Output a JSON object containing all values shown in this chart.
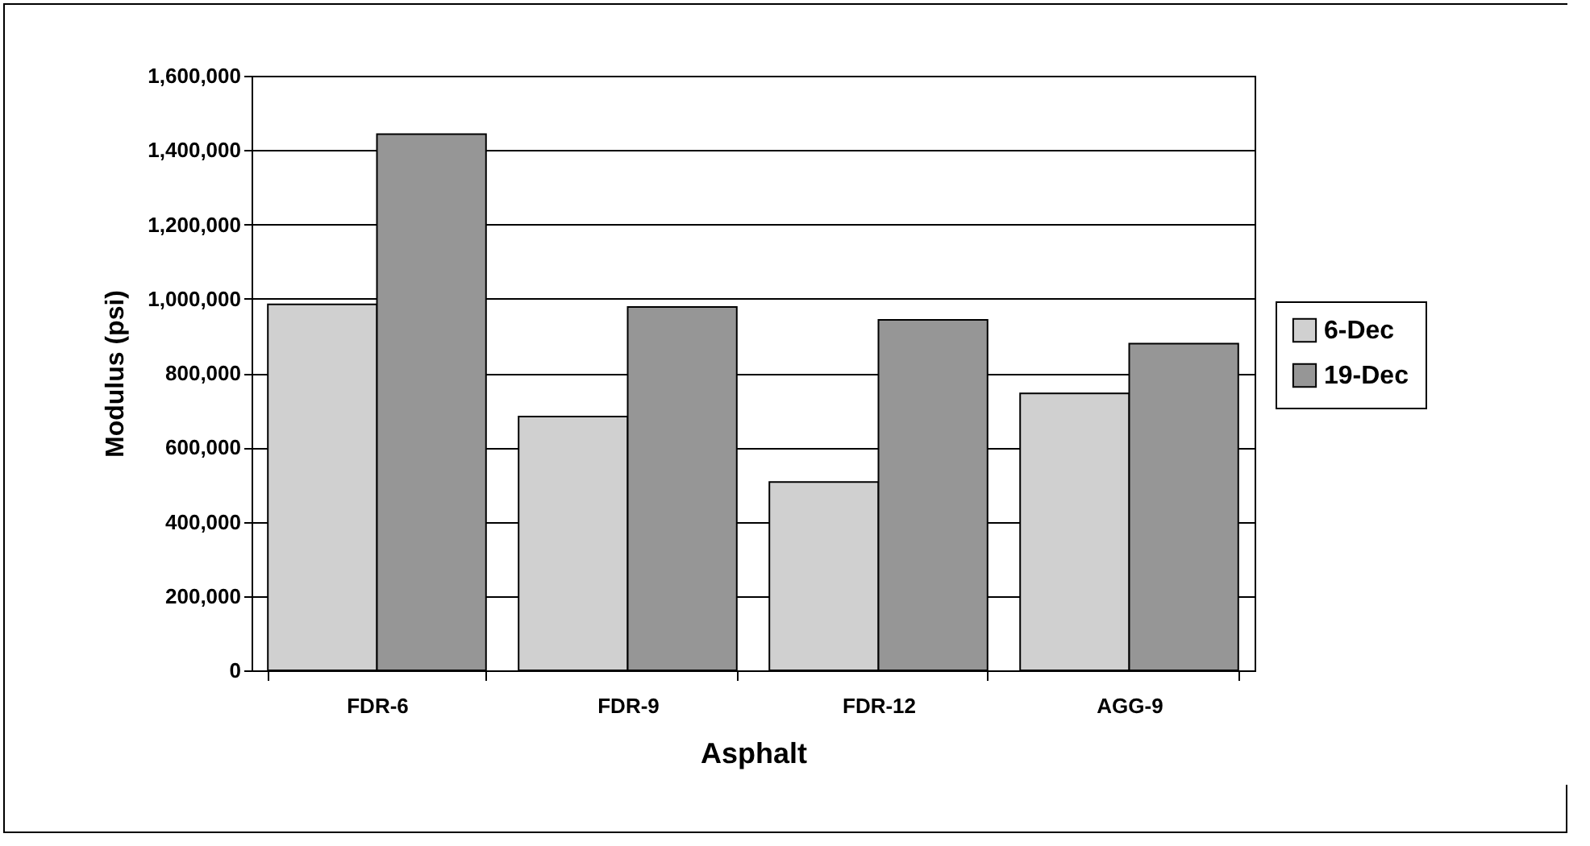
{
  "chart_data": {
    "type": "bar",
    "xlabel": "Asphalt",
    "ylabel": "Modulus (psi)",
    "categories": [
      "FDR-6",
      "FDR-9",
      "FDR-12",
      "AGG-9"
    ],
    "series": [
      {
        "name": "6-Dec",
        "color": "#d0d0d0",
        "values": [
          985000,
          683000,
          507000,
          745000
        ]
      },
      {
        "name": "19-Dec",
        "color": "#969696",
        "values": [
          1443000,
          978000,
          943000,
          879000
        ]
      }
    ],
    "ylim": [
      0,
      1600000
    ],
    "yticks": [
      0,
      {
        "value": 200000,
        "label": "200,000"
      },
      {
        "value": 400000,
        "label": "400,000"
      },
      {
        "value": 600000,
        "label": "600,000"
      },
      {
        "value": 800000,
        "label": "800,000"
      },
      {
        "value": 1000000,
        "label": "1,000,000"
      },
      {
        "value": 1200000,
        "label": "1,200,000"
      },
      {
        "value": 1400000,
        "label": "1,400,000"
      },
      {
        "value": 1600000,
        "label": "1,600,000"
      }
    ],
    "grid": "y",
    "legend": "right"
  }
}
